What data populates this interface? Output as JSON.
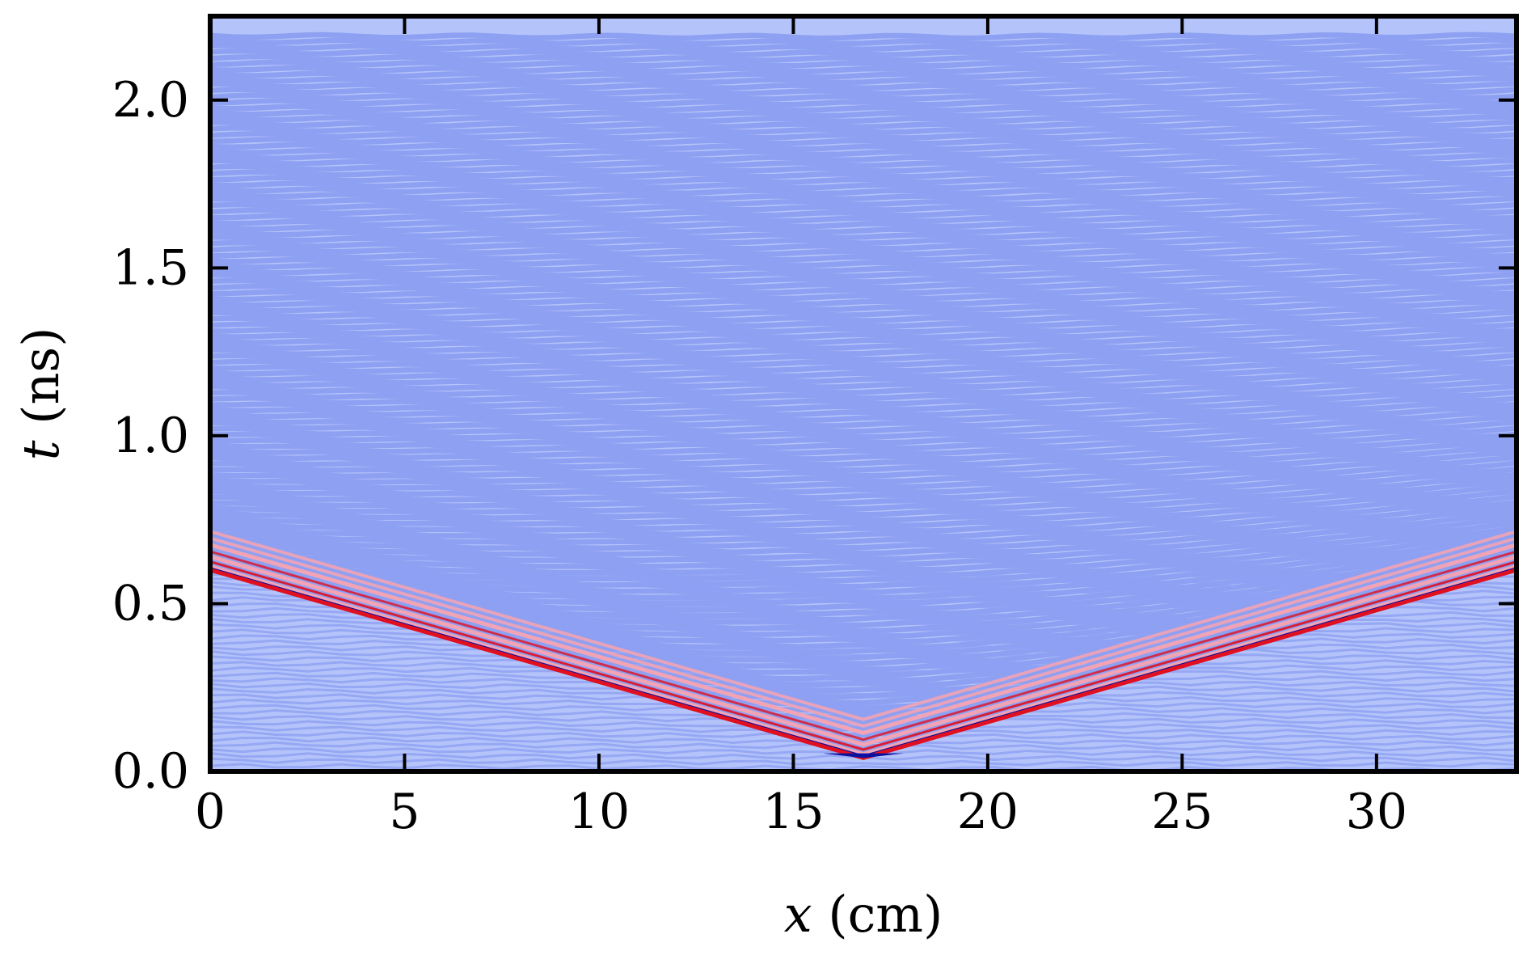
{
  "chart_data": {
    "type": "heatmap",
    "title": "",
    "xlabel_var": "x",
    "xlabel_unit": " (cm)",
    "ylabel_var": "t",
    "ylabel_unit": " (ns)",
    "xlim": [
      0,
      33.6
    ],
    "ylim": [
      0,
      2.25
    ],
    "xticks": [
      0,
      5,
      10,
      15,
      20,
      25,
      30
    ],
    "xtick_labels": [
      "0",
      "5",
      "10",
      "15",
      "20",
      "25",
      "30"
    ],
    "yticks": [
      0.0,
      0.5,
      1.0,
      1.5,
      2.0
    ],
    "ytick_labels": [
      "0.0",
      "0.5",
      "1.0",
      "1.5",
      "2.0"
    ],
    "grid": false,
    "colormap": "diverging blue-white-red (seismic-like)",
    "colors": {
      "background_band_light": "#b4c4fa",
      "background_band_dark": "#8ea0f2",
      "wavefront_red": "#e01020",
      "wavefront_pink": "#f2a3b4",
      "apex_blue": "#0a10a0",
      "frame": "#000000"
    },
    "features": {
      "apex": {
        "x": 16.8,
        "t": 0.04
      },
      "left_front": {
        "x_at_edge": 0.0,
        "t_at_edge": 0.6
      },
      "right_front": {
        "x_at_edge": 33.6,
        "t_at_edge": 0.6
      },
      "approx_stripe_count": 130
    }
  }
}
